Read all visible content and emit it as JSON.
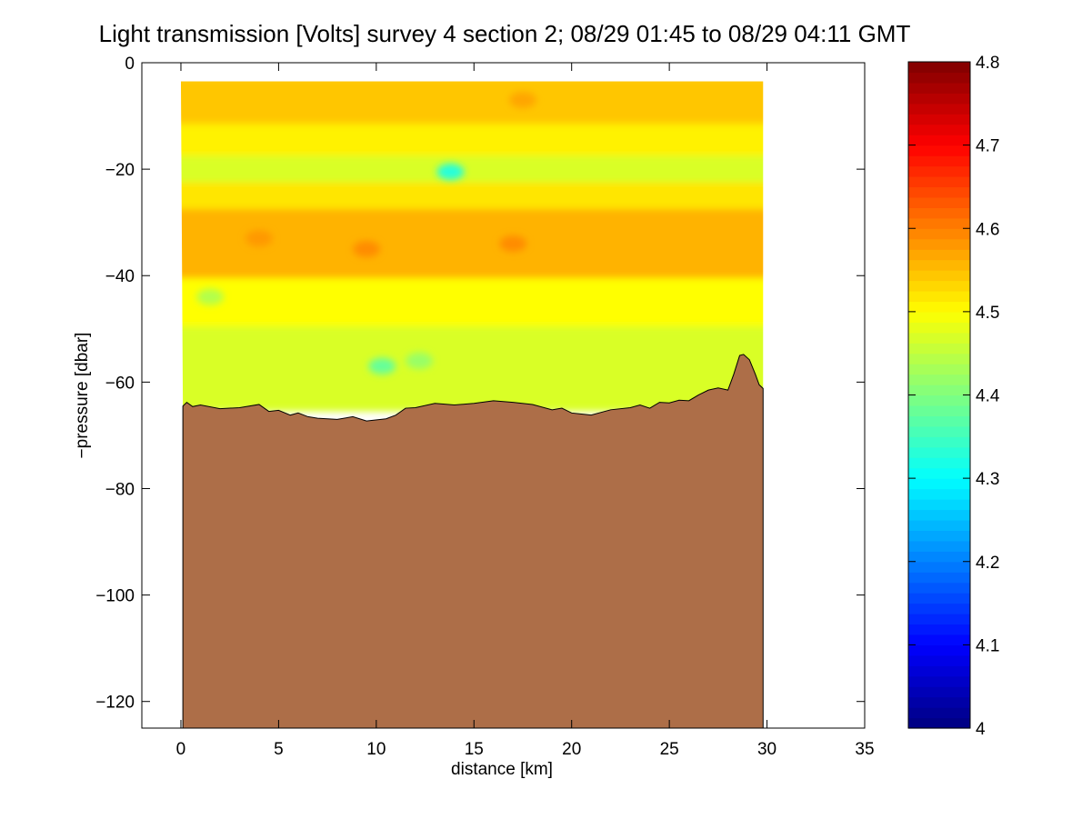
{
  "chart_data": {
    "type": "heatmap",
    "title": "Light transmission [Volts] survey 4 section 2; 08/29 01:45 to 08/29 04:11 GMT",
    "xlabel": "distance [km]",
    "ylabel": "−pressure [dbar]",
    "xlim": [
      -2,
      35
    ],
    "ylim": [
      -125,
      0
    ],
    "xticks": [
      0,
      5,
      10,
      15,
      20,
      25,
      30,
      35
    ],
    "xtick_labels": [
      "0",
      "5",
      "10",
      "15",
      "20",
      "25",
      "30",
      "35"
    ],
    "yticks": [
      0,
      -20,
      -40,
      -60,
      -80,
      -100,
      -120
    ],
    "ytick_labels": [
      "0",
      "−20",
      "−40",
      "−60",
      "−80",
      "−100",
      "−120"
    ],
    "colorbar": {
      "range": [
        4.0,
        4.8
      ],
      "ticks": [
        4.0,
        4.1,
        4.2,
        4.3,
        4.4,
        4.5,
        4.6,
        4.7,
        4.8
      ],
      "tick_labels": [
        "4",
        "4.1",
        "4.2",
        "4.3",
        "4.4",
        "4.5",
        "4.6",
        "4.7",
        "4.8"
      ],
      "colormap": "jet"
    },
    "field_extent": {
      "x": [
        0,
        29.8
      ],
      "y": [
        -65,
        -3.5
      ]
    },
    "depth_bands": [
      {
        "y_top": -3.5,
        "y_bottom": -12,
        "value": 4.545
      },
      {
        "y_top": -12,
        "y_bottom": -18,
        "value": 4.51
      },
      {
        "y_top": -18,
        "y_bottom": -23,
        "value": 4.47
      },
      {
        "y_top": -23,
        "y_bottom": -28,
        "value": 4.52
      },
      {
        "y_top": -28,
        "y_bottom": -41,
        "value": 4.56
      },
      {
        "y_top": -41,
        "y_bottom": -50,
        "value": 4.5
      },
      {
        "y_top": -50,
        "y_bottom": -65,
        "value": 4.47
      }
    ],
    "anomalies": [
      {
        "x": 13.8,
        "y": -20.5,
        "value": 4.33
      },
      {
        "x": 10.3,
        "y": -57,
        "value": 4.38
      },
      {
        "x": 12.2,
        "y": -56,
        "value": 4.42
      },
      {
        "x": 1.5,
        "y": -44,
        "value": 4.44
      },
      {
        "x": 9.5,
        "y": -35,
        "value": 4.59
      },
      {
        "x": 17,
        "y": -34,
        "value": 4.59
      },
      {
        "x": 4,
        "y": -33,
        "value": 4.58
      },
      {
        "x": 17.5,
        "y": -7,
        "value": 4.57
      }
    ],
    "bottom_profile": {
      "x": [
        0.1,
        0.3,
        0.6,
        1.0,
        2.0,
        3.0,
        4.0,
        4.5,
        5.0,
        5.6,
        6.0,
        6.5,
        7.0,
        8.0,
        8.8,
        9.5,
        10.5,
        11.0,
        11.5,
        12.0,
        13.0,
        14.0,
        15.0,
        16.0,
        17.0,
        18.0,
        19.0,
        19.5,
        20.0,
        21.0,
        22.0,
        23.0,
        23.5,
        24.0,
        24.5,
        25.0,
        25.5,
        26.0,
        26.5,
        27.0,
        27.5,
        28.0,
        28.3,
        28.6,
        28.8,
        29.1,
        29.4,
        29.6,
        29.8
      ],
      "y": [
        -64.5,
        -63.8,
        -64.6,
        -64.3,
        -65.0,
        -64.8,
        -64.2,
        -65.5,
        -65.3,
        -66.2,
        -65.8,
        -66.5,
        -66.8,
        -67.0,
        -66.5,
        -67.3,
        -66.9,
        -66.2,
        -64.9,
        -64.8,
        -64.0,
        -64.3,
        -64.0,
        -63.5,
        -63.8,
        -64.2,
        -65.2,
        -64.9,
        -65.8,
        -66.2,
        -65.2,
        -64.8,
        -64.3,
        -64.9,
        -63.8,
        -63.9,
        -63.4,
        -63.5,
        -62.4,
        -61.5,
        -61.1,
        -61.5,
        -58.5,
        -55.0,
        -54.8,
        -55.8,
        -58.5,
        -60.5,
        -61.2
      ],
      "fill_color": "#ad6e48"
    }
  }
}
